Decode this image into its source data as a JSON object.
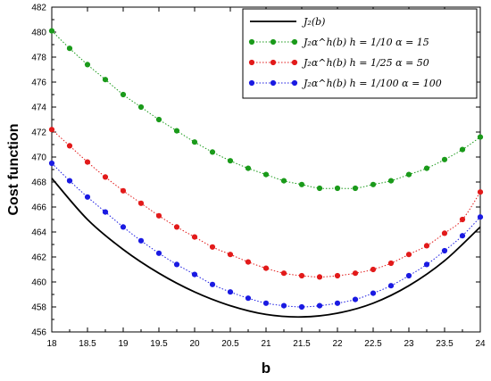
{
  "chart_data": {
    "type": "line",
    "xlabel": "b",
    "ylabel": "Cost function",
    "xlim": [
      18,
      24
    ],
    "ylim": [
      456,
      482
    ],
    "xticks": [
      "18",
      "18.5",
      "19",
      "19.5",
      "20",
      "20.5",
      "21",
      "21.5",
      "22",
      "22.5",
      "23",
      "23.5",
      "24"
    ],
    "yticks": [
      "456",
      "458",
      "460",
      "462",
      "464",
      "466",
      "468",
      "470",
      "472",
      "474",
      "476",
      "478",
      "480",
      "482"
    ],
    "grid": false,
    "legend_position": "top-right",
    "series": [
      {
        "name": "J_2(b)",
        "legend_label": "J₂(b)",
        "color": "#000000",
        "style": "solid",
        "markers": false,
        "x": [
          18,
          18.5,
          19,
          19.5,
          20,
          20.5,
          21,
          21.5,
          22,
          22.5,
          23,
          23.5,
          24
        ],
        "y": [
          468.3,
          465.0,
          462.6,
          460.7,
          459.2,
          458.1,
          457.4,
          457.2,
          457.5,
          458.3,
          459.7,
          461.7,
          464.4
        ]
      },
      {
        "name": "J_2α^h(b) h = 1/10 α = 15",
        "legend_label": "J₂α^h(b)   h = 1/10    α = 15",
        "color": "#1a9a1a",
        "style": "dotted",
        "markers": true,
        "x": [
          18,
          18.25,
          18.5,
          18.75,
          19,
          19.25,
          19.5,
          19.75,
          20,
          20.25,
          20.5,
          20.75,
          21,
          21.25,
          21.5,
          21.75,
          22,
          22.25,
          22.5,
          22.75,
          23,
          23.25,
          23.5,
          23.75,
          24
        ],
        "y": [
          480.1,
          478.7,
          477.4,
          476.2,
          475.0,
          474.0,
          473.0,
          472.1,
          471.2,
          470.4,
          469.7,
          469.1,
          468.6,
          468.1,
          467.8,
          467.5,
          467.5,
          467.5,
          467.8,
          468.1,
          468.6,
          469.1,
          469.8,
          470.6,
          471.6
        ]
      },
      {
        "name": "J_2α^h(b) h = 1/25 α = 50",
        "legend_label": "J₂α^h(b)   h = 1/25    α = 50",
        "color": "#e21a1a",
        "style": "dotted",
        "markers": true,
        "x": [
          18,
          18.25,
          18.5,
          18.75,
          19,
          19.25,
          19.5,
          19.75,
          20,
          20.25,
          20.5,
          20.75,
          21,
          21.25,
          21.5,
          21.75,
          22,
          22.25,
          22.5,
          22.75,
          23,
          23.25,
          23.5,
          23.75,
          24
        ],
        "y": [
          472.2,
          470.9,
          469.6,
          468.4,
          467.3,
          466.3,
          465.3,
          464.4,
          463.6,
          462.8,
          462.2,
          461.6,
          461.1,
          460.7,
          460.5,
          460.4,
          460.5,
          460.7,
          461.0,
          461.5,
          462.2,
          462.9,
          463.9,
          465.0,
          467.2
        ]
      },
      {
        "name": "J_2α^h(b) h = 1/100 α = 100",
        "legend_label": "J₂α^h(b)   h = 1/100    α = 100",
        "color": "#1a1ae2",
        "style": "dotted",
        "markers": true,
        "x": [
          18,
          18.25,
          18.5,
          18.75,
          19,
          19.25,
          19.5,
          19.75,
          20,
          20.25,
          20.5,
          20.75,
          21,
          21.25,
          21.5,
          21.75,
          22,
          22.25,
          22.5,
          22.75,
          23,
          23.25,
          23.5,
          23.75,
          24
        ],
        "y": [
          469.5,
          468.1,
          466.8,
          465.6,
          464.4,
          463.3,
          462.3,
          461.4,
          460.6,
          459.8,
          459.2,
          458.7,
          458.3,
          458.1,
          458.0,
          458.1,
          458.3,
          458.6,
          459.1,
          459.7,
          460.5,
          461.4,
          462.5,
          463.7,
          465.2
        ]
      }
    ]
  }
}
